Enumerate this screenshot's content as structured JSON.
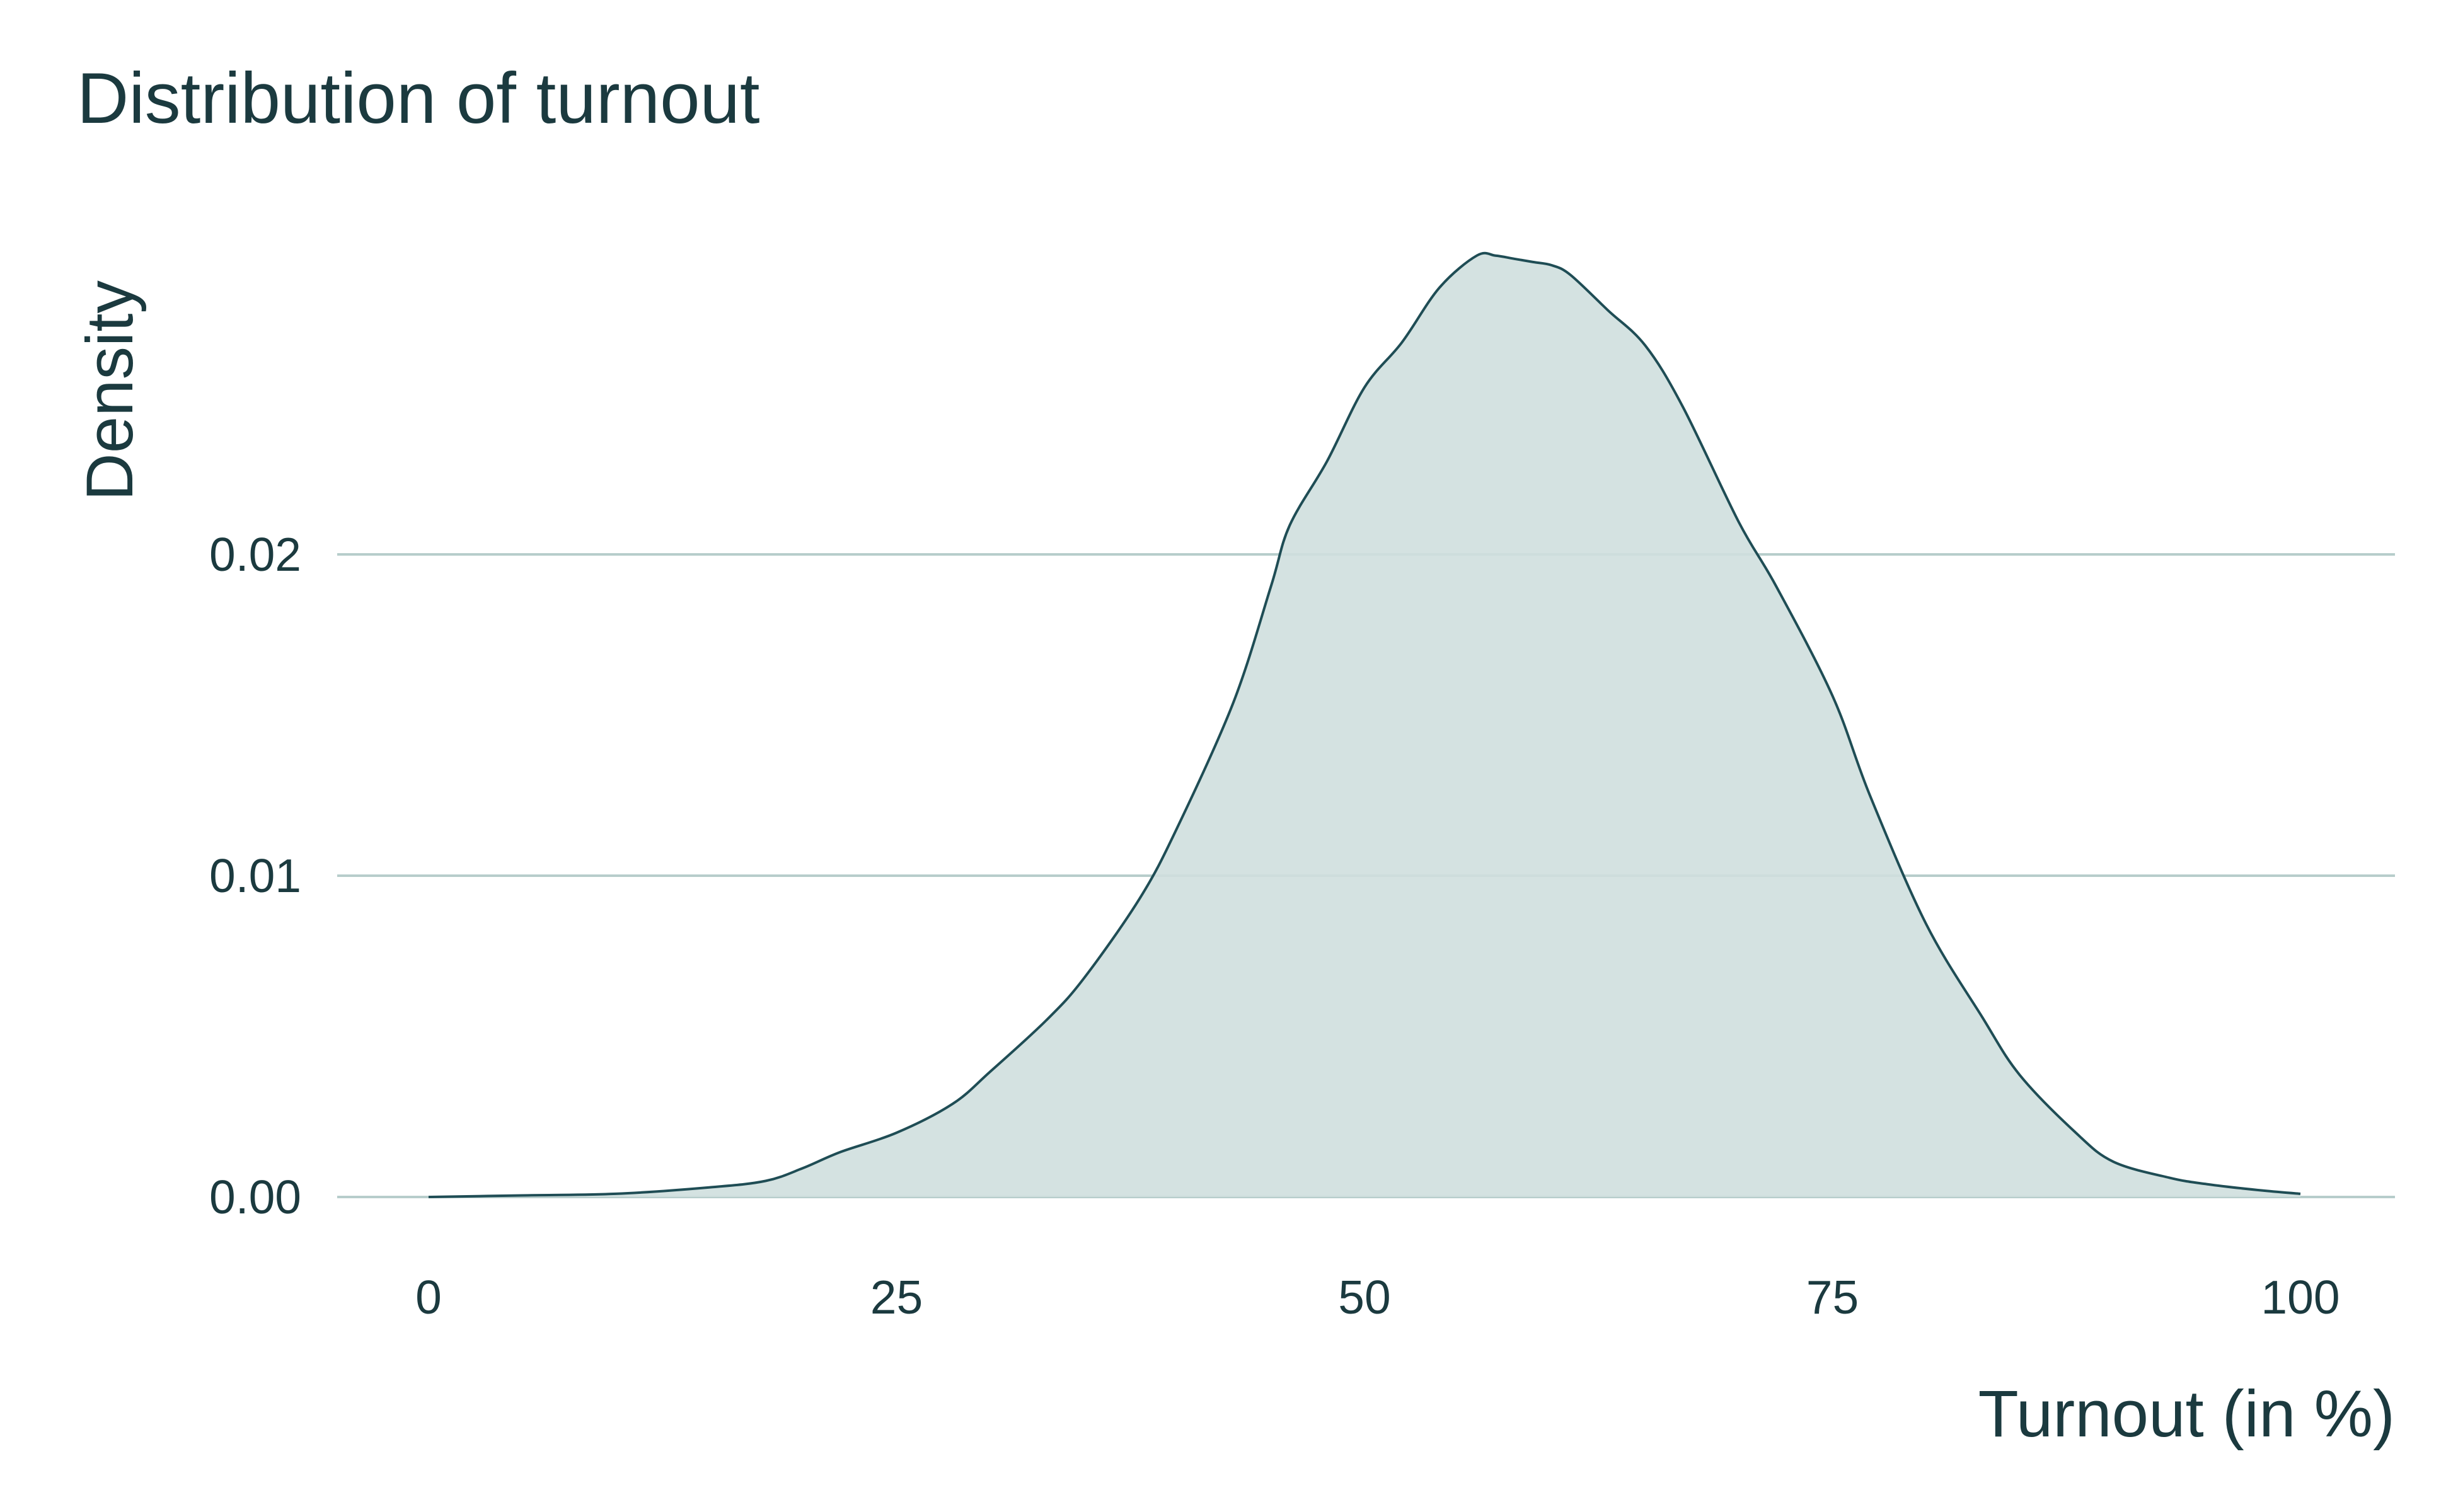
{
  "chart_data": {
    "type": "area",
    "title": "Distribution of turnout",
    "xlabel": "Turnout (in %)",
    "ylabel": "Density",
    "xlim": [
      0,
      100
    ],
    "ylim": [
      0,
      0.028
    ],
    "x_ticks": [
      0,
      25,
      50,
      75,
      100
    ],
    "x_tick_labels": [
      "0",
      "25",
      "50",
      "75",
      "100"
    ],
    "y_ticks": [
      0.0,
      0.01,
      0.02
    ],
    "y_tick_labels": [
      "0.00",
      "0.01",
      "0.02"
    ],
    "grid": "horizontal",
    "legend": "none",
    "series": [
      {
        "x": [
          0,
          5,
          10,
          15,
          18,
          20,
          22,
          25,
          28,
          30,
          33,
          35,
          38,
          40,
          43,
          45,
          46,
          48,
          50,
          52,
          54,
          56,
          57,
          58,
          59,
          60,
          61,
          63,
          65,
          67,
          70,
          72,
          75,
          77,
          80,
          83,
          85,
          88,
          90,
          93,
          95,
          98,
          100
        ],
        "y": [
          0.0,
          5e-05,
          0.0001,
          0.0003,
          0.0005,
          0.0009,
          0.0014,
          0.002,
          0.0029,
          0.0039,
          0.0055,
          0.0068,
          0.0093,
          0.0115,
          0.0154,
          0.019,
          0.0209,
          0.0229,
          0.0252,
          0.0266,
          0.0283,
          0.0293,
          0.0293,
          0.0292,
          0.0291,
          0.029,
          0.0287,
          0.0276,
          0.0265,
          0.0246,
          0.021,
          0.019,
          0.0156,
          0.0125,
          0.0085,
          0.0056,
          0.0038,
          0.002,
          0.0011,
          0.0006,
          0.0004,
          0.0002,
          0.0001
        ]
      }
    ]
  },
  "colors": {
    "fill": "#cfdfde",
    "line": "#1f4d55",
    "grid": "#b7cdcb",
    "text": "#1b3a3f"
  }
}
